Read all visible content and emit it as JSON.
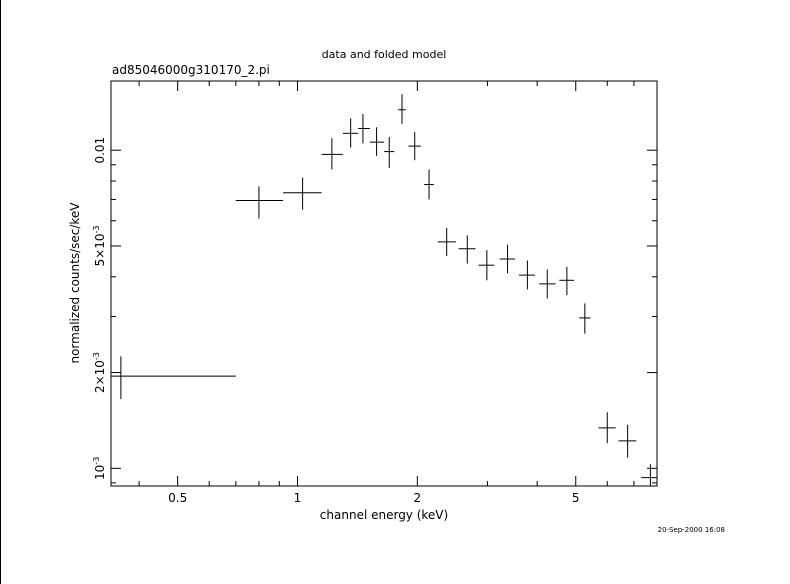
{
  "chart_data": {
    "type": "scatter",
    "title": "data and folded model",
    "subtitle": "ad85046000g310170_2.pi",
    "xlabel": "channel energy (keV)",
    "ylabel": "normalized counts/sec/keV",
    "xscale": "log",
    "yscale": "log",
    "xlim": [
      0.34,
      8.0
    ],
    "ylim": [
      0.00088,
      0.0165
    ],
    "x_ticks": [
      {
        "value": 0.5,
        "label": "0.5"
      },
      {
        "value": 1,
        "label": "1"
      },
      {
        "value": 2,
        "label": "2"
      },
      {
        "value": 5,
        "label": "5"
      }
    ],
    "y_ticks": [
      {
        "value": 0.001,
        "mantissa": "10",
        "exponent": "-3"
      },
      {
        "value": 0.002,
        "mantissa": "2×10",
        "exponent": "-3"
      },
      {
        "value": 0.005,
        "mantissa": "5×10",
        "exponent": "-3"
      },
      {
        "value": 0.01,
        "mantissa": "0.01",
        "exponent": ""
      }
    ],
    "points": [
      {
        "x": 0.36,
        "xlo": 0.34,
        "xhi": 0.7,
        "y": 0.00195,
        "ylo": 0.00165,
        "yhi": 0.00225
      },
      {
        "x": 0.8,
        "xlo": 0.7,
        "xhi": 0.92,
        "y": 0.00695,
        "ylo": 0.0061,
        "yhi": 0.0077
      },
      {
        "x": 1.03,
        "xlo": 0.92,
        "xhi": 1.15,
        "y": 0.00735,
        "ylo": 0.0065,
        "yhi": 0.0082
      },
      {
        "x": 1.22,
        "xlo": 1.15,
        "xhi": 1.3,
        "y": 0.0097,
        "ylo": 0.0087,
        "yhi": 0.0109
      },
      {
        "x": 1.36,
        "xlo": 1.3,
        "xhi": 1.42,
        "y": 0.0113,
        "ylo": 0.0102,
        "yhi": 0.0126
      },
      {
        "x": 1.46,
        "xlo": 1.42,
        "xhi": 1.52,
        "y": 0.0117,
        "ylo": 0.0105,
        "yhi": 0.013
      },
      {
        "x": 1.58,
        "xlo": 1.52,
        "xhi": 1.65,
        "y": 0.0106,
        "ylo": 0.0096,
        "yhi": 0.0118
      },
      {
        "x": 1.7,
        "xlo": 1.65,
        "xhi": 1.75,
        "y": 0.0099,
        "ylo": 0.0088,
        "yhi": 0.011
      },
      {
        "x": 1.83,
        "xlo": 1.79,
        "xhi": 1.87,
        "y": 0.0134,
        "ylo": 0.0121,
        "yhi": 0.015
      },
      {
        "x": 1.97,
        "xlo": 1.9,
        "xhi": 2.04,
        "y": 0.0103,
        "ylo": 0.0093,
        "yhi": 0.0114
      },
      {
        "x": 2.14,
        "xlo": 2.08,
        "xhi": 2.2,
        "y": 0.0078,
        "ylo": 0.007,
        "yhi": 0.0087
      },
      {
        "x": 2.37,
        "xlo": 2.25,
        "xhi": 2.5,
        "y": 0.00515,
        "ylo": 0.00465,
        "yhi": 0.0057
      },
      {
        "x": 2.67,
        "xlo": 2.54,
        "xhi": 2.8,
        "y": 0.0049,
        "ylo": 0.0044,
        "yhi": 0.0054
      },
      {
        "x": 2.99,
        "xlo": 2.85,
        "xhi": 3.12,
        "y": 0.00435,
        "ylo": 0.0039,
        "yhi": 0.00485
      },
      {
        "x": 3.37,
        "xlo": 3.22,
        "xhi": 3.52,
        "y": 0.00455,
        "ylo": 0.0041,
        "yhi": 0.00505
      },
      {
        "x": 3.78,
        "xlo": 3.6,
        "xhi": 3.95,
        "y": 0.00405,
        "ylo": 0.00365,
        "yhi": 0.0045
      },
      {
        "x": 4.24,
        "xlo": 4.05,
        "xhi": 4.45,
        "y": 0.0038,
        "ylo": 0.00342,
        "yhi": 0.00422
      },
      {
        "x": 4.75,
        "xlo": 4.55,
        "xhi": 4.95,
        "y": 0.0039,
        "ylo": 0.0035,
        "yhi": 0.0043
      },
      {
        "x": 5.27,
        "xlo": 5.1,
        "xhi": 5.45,
        "y": 0.00297,
        "ylo": 0.00265,
        "yhi": 0.0033
      },
      {
        "x": 6.0,
        "xlo": 5.7,
        "xhi": 6.3,
        "y": 0.00134,
        "ylo": 0.0012,
        "yhi": 0.0015
      },
      {
        "x": 6.75,
        "xlo": 6.4,
        "xhi": 7.1,
        "y": 0.00122,
        "ylo": 0.00108,
        "yhi": 0.00137
      },
      {
        "x": 7.7,
        "xlo": 7.3,
        "xhi": 8.0,
        "y": 0.000935,
        "ylo": 0.00088,
        "yhi": 0.00103
      }
    ]
  },
  "timestamp": "20-Sep-2000 16:08"
}
